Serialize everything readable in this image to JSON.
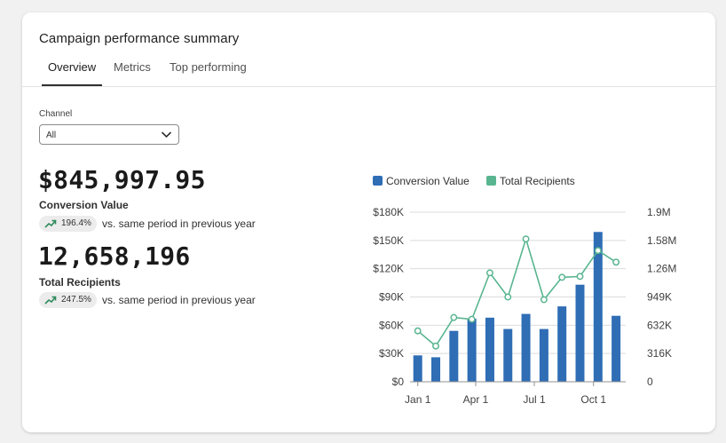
{
  "card": {
    "title": "Campaign performance summary",
    "tabs": [
      {
        "label": "Overview",
        "active": true
      },
      {
        "label": "Metrics",
        "active": false
      },
      {
        "label": "Top performing",
        "active": false
      }
    ]
  },
  "filter": {
    "label": "Channel",
    "value": "All"
  },
  "metrics": [
    {
      "value": "$845,997.95",
      "label": "Conversion Value",
      "change": "196.4%",
      "comparison": "vs. same period in previous year"
    },
    {
      "value": "12,658,196",
      "label": "Total Recipients",
      "change": "247.5%",
      "comparison": "vs. same period in previous year"
    }
  ],
  "colors": {
    "bar": "#2f6db5",
    "line": "#59b590",
    "badge_icon": "#2e8a5b"
  },
  "chart_data": {
    "type": "bar+line",
    "legend_position": "top",
    "x_tick_labels": [
      "Jan 1",
      "Apr 1",
      "Jul 1",
      "Oct 1"
    ],
    "x_tick_dates": [
      "2023-01-01",
      "2023-04-01",
      "2023-07-01",
      "2023-10-01"
    ],
    "x": [
      "2023-01-01",
      "2023-01-29",
      "2023-02-26",
      "2023-03-26",
      "2023-04-23",
      "2023-05-21",
      "2023-06-18",
      "2023-07-16",
      "2023-08-13",
      "2023-09-10",
      "2023-10-08",
      "2023-11-05"
    ],
    "xlim": [
      "2022-12-20",
      "2023-11-20"
    ],
    "series": [
      {
        "name": "Conversion Value",
        "type": "bar",
        "axis": "left",
        "values": [
          28000,
          26000,
          54000,
          67000,
          68000,
          56000,
          72000,
          56000,
          80000,
          103000,
          159000,
          70000
        ]
      },
      {
        "name": "Total Recipients",
        "type": "line",
        "axis": "right",
        "values": [
          570000,
          400000,
          720000,
          700000,
          1220000,
          950000,
          1600000,
          920000,
          1170000,
          1180000,
          1470000,
          1340000
        ]
      }
    ],
    "y_left": {
      "ticks": [
        "$0",
        "$30K",
        "$60K",
        "$90K",
        "$120K",
        "$150K",
        "$180K"
      ],
      "range": [
        0,
        180000
      ]
    },
    "y_right": {
      "ticks": [
        "0",
        "316K",
        "632K",
        "949K",
        "1.26M",
        "1.58M",
        "1.9M"
      ],
      "range": [
        0,
        1900000
      ]
    },
    "grid": true
  }
}
